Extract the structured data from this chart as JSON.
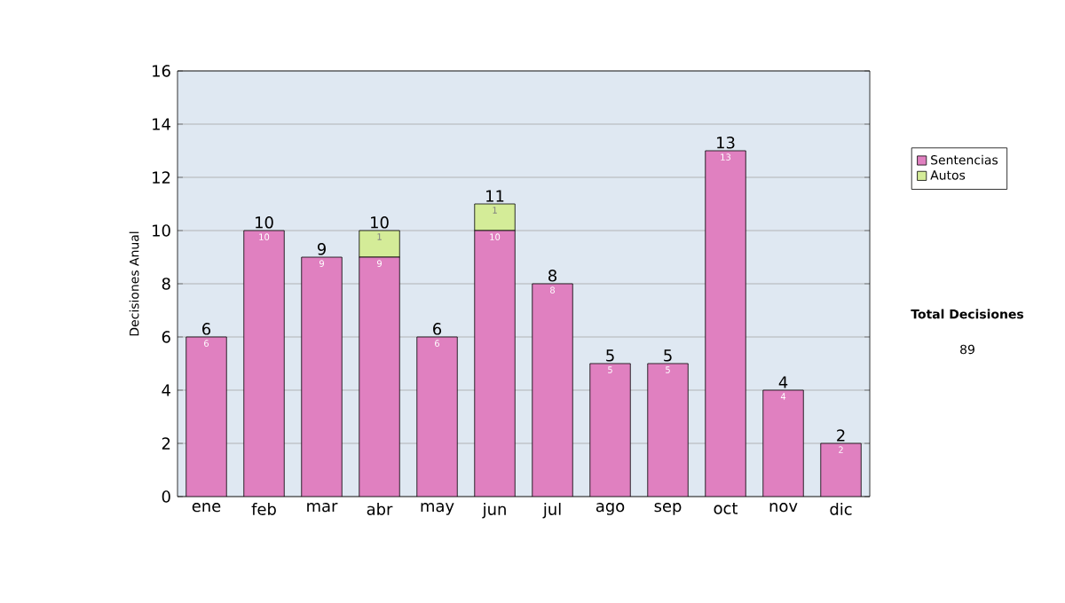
{
  "chart_data": {
    "type": "bar",
    "stacked": true,
    "ylabel": "Decisiones Anual",
    "categories": [
      "ene",
      "feb",
      "mar",
      "abr",
      "may",
      "jun",
      "jul",
      "ago",
      "sep",
      "oct",
      "nov",
      "dic"
    ],
    "series": [
      {
        "name": "Sentencias",
        "color": "#e080c0",
        "values": [
          6,
          10,
          9,
          9,
          6,
          10,
          8,
          5,
          5,
          13,
          4,
          2
        ],
        "value_labels": [
          "6",
          "10",
          "9",
          "9",
          "6",
          "10",
          "8",
          "5",
          "5",
          "13",
          "4",
          "2"
        ]
      },
      {
        "name": "Autos",
        "color": "#d4ec98",
        "values": [
          0,
          0,
          0,
          1,
          0,
          1,
          0,
          0,
          0,
          0,
          0,
          0
        ],
        "value_labels": [
          null,
          null,
          null,
          "1",
          null,
          "1",
          null,
          null,
          null,
          null,
          null,
          null
        ]
      }
    ],
    "totals": [
      "6",
      "10",
      "9",
      "10",
      "6",
      "11",
      "8",
      "5",
      "5",
      "13",
      "4",
      "2"
    ],
    "ylim": [
      0,
      16
    ],
    "yticks": [
      0,
      2,
      4,
      6,
      8,
      10,
      12,
      14,
      16
    ],
    "grid": "y",
    "legend": "right",
    "annotations": [
      "**Total Decisiones**",
      "89"
    ]
  }
}
